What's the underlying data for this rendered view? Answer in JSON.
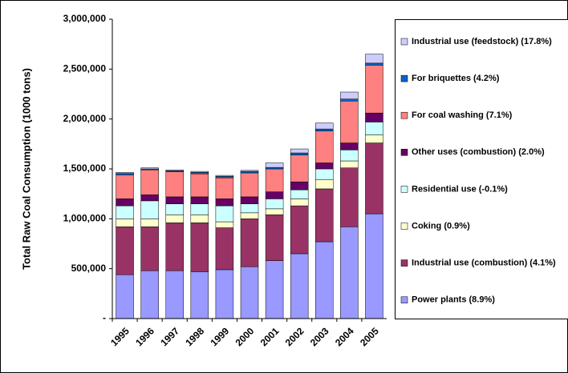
{
  "chart_data": {
    "type": "stacked_bar",
    "y_label": "Total Raw Coal Consumption (1000 tons)",
    "categories": [
      "1995",
      "1996",
      "1997",
      "1998",
      "1999",
      "2000",
      "2001",
      "2002",
      "2003",
      "2004",
      "2005"
    ],
    "ylim": [
      0,
      3000000
    ],
    "yticks": [
      {
        "value": 0,
        "label": "-"
      },
      {
        "value": 500000,
        "label": "500,000"
      },
      {
        "value": 1000000,
        "label": "1,000,000"
      },
      {
        "value": 1500000,
        "label": "1,500,000"
      },
      {
        "value": 2000000,
        "label": "2,000,000"
      },
      {
        "value": 2500000,
        "label": "2,500,000"
      },
      {
        "value": 3000000,
        "label": "3,000,000"
      }
    ],
    "legend": "right",
    "series": [
      {
        "name": "Power plants (8.9%)",
        "color": "#9999ff",
        "values": [
          440000,
          480000,
          480000,
          470000,
          490000,
          520000,
          580000,
          650000,
          770000,
          920000,
          1050000
        ]
      },
      {
        "name": "Industrial use (combustion) (4.1%)",
        "color": "#993366",
        "values": [
          480000,
          440000,
          480000,
          490000,
          420000,
          480000,
          460000,
          480000,
          530000,
          590000,
          710000
        ]
      },
      {
        "name": "Coking (0.9%)",
        "color": "#ffffcc",
        "values": [
          80000,
          80000,
          80000,
          80000,
          60000,
          60000,
          60000,
          70000,
          90000,
          70000,
          80000
        ]
      },
      {
        "name": "Residential use (-0.1%)",
        "color": "#ccffff",
        "values": [
          130000,
          180000,
          110000,
          110000,
          160000,
          90000,
          100000,
          90000,
          110000,
          110000,
          130000
        ]
      },
      {
        "name": "Other uses (combustion) (2.0%)",
        "color": "#660066",
        "values": [
          70000,
          60000,
          70000,
          70000,
          70000,
          70000,
          70000,
          80000,
          60000,
          70000,
          90000
        ]
      },
      {
        "name": "For coal washing (7.1%)",
        "color": "#ff8080",
        "values": [
          240000,
          250000,
          250000,
          230000,
          210000,
          240000,
          230000,
          270000,
          320000,
          420000,
          480000
        ]
      },
      {
        "name": "For briquettes (4.2%)",
        "color": "#0066cc",
        "values": [
          15000,
          10000,
          10000,
          15000,
          15000,
          15000,
          15000,
          20000,
          20000,
          20000,
          20000
        ]
      },
      {
        "name": "Industrial use (feedstock) (17.8%)",
        "color": "#ccccff",
        "values": [
          10000,
          10000,
          10000,
          10000,
          10000,
          10000,
          45000,
          40000,
          60000,
          70000,
          90000
        ]
      }
    ]
  }
}
